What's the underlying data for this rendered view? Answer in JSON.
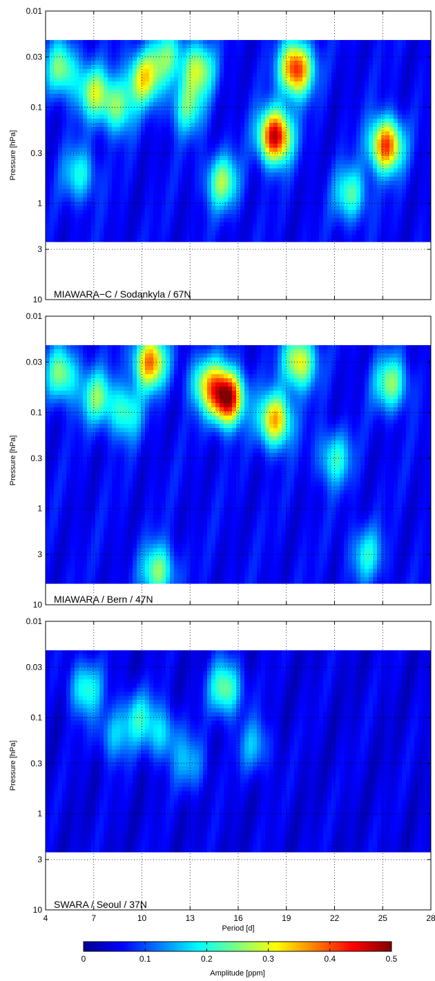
{
  "chart_data": [
    {
      "type": "heatmap",
      "annotation": "MIAWARA−C / Sodankyla / 67N",
      "ylabel": "Pressure [hPa]",
      "xlabel": "",
      "xlim": [
        4,
        28
      ],
      "ylim": [
        10,
        0.01
      ],
      "yscale": "log",
      "data_pressure_range": [
        0.02,
        2.5
      ],
      "x_ticks": [
        4,
        7,
        10,
        13,
        16,
        19,
        22,
        25,
        28
      ],
      "y_ticks": [
        0.01,
        0.03,
        0.1,
        0.3,
        1,
        3,
        10
      ],
      "y_tick_labels": [
        "0.01",
        "0.03",
        "0.1",
        "0.3",
        "1",
        "3",
        "10"
      ],
      "x_tick_labels": [],
      "grid": true,
      "background_amplitude": 0.06,
      "features": [
        {
          "period": 18.3,
          "pressure": 0.2,
          "amplitude": 0.42
        },
        {
          "period": 19.6,
          "pressure": 0.04,
          "amplitude": 0.38
        },
        {
          "period": 25.2,
          "pressure": 0.25,
          "amplitude": 0.36
        },
        {
          "period": 10.1,
          "pressure": 0.05,
          "amplitude": 0.25
        },
        {
          "period": 13.5,
          "pressure": 0.04,
          "amplitude": 0.22
        },
        {
          "period": 11.5,
          "pressure": 0.03,
          "amplitude": 0.16
        },
        {
          "period": 5.0,
          "pressure": 0.04,
          "amplitude": 0.2
        },
        {
          "period": 7.0,
          "pressure": 0.07,
          "amplitude": 0.2
        },
        {
          "period": 8.5,
          "pressure": 0.1,
          "amplitude": 0.18
        },
        {
          "period": 12.8,
          "pressure": 0.1,
          "amplitude": 0.16
        },
        {
          "period": 15.0,
          "pressure": 0.6,
          "amplitude": 0.2
        },
        {
          "period": 6.1,
          "pressure": 0.5,
          "amplitude": 0.14
        },
        {
          "period": 23.0,
          "pressure": 0.8,
          "amplitude": 0.17
        }
      ]
    },
    {
      "type": "heatmap",
      "annotation": "MIAWARA / Bern / 47N",
      "ylabel": "Pressure [hPa]",
      "xlabel": "",
      "xlim": [
        4,
        28
      ],
      "ylim": [
        10,
        0.01
      ],
      "yscale": "log",
      "data_pressure_range": [
        0.02,
        6.0
      ],
      "x_ticks": [
        4,
        7,
        10,
        13,
        16,
        19,
        22,
        25,
        28
      ],
      "y_ticks": [
        0.01,
        0.03,
        0.1,
        0.3,
        1,
        3,
        10
      ],
      "y_tick_labels": [
        "0.01",
        "0.03",
        "0.1",
        "0.3",
        "1",
        "3",
        "10"
      ],
      "x_tick_labels": [],
      "grid": true,
      "background_amplitude": 0.06,
      "features": [
        {
          "period": 15.3,
          "pressure": 0.07,
          "amplitude": 0.45
        },
        {
          "period": 10.5,
          "pressure": 0.03,
          "amplitude": 0.32
        },
        {
          "period": 18.3,
          "pressure": 0.12,
          "amplitude": 0.3
        },
        {
          "period": 19.8,
          "pressure": 0.03,
          "amplitude": 0.26
        },
        {
          "period": 14.0,
          "pressure": 0.05,
          "amplitude": 0.2
        },
        {
          "period": 25.5,
          "pressure": 0.05,
          "amplitude": 0.2
        },
        {
          "period": 5.0,
          "pressure": 0.04,
          "amplitude": 0.2
        },
        {
          "period": 7.2,
          "pressure": 0.07,
          "amplitude": 0.18
        },
        {
          "period": 9.0,
          "pressure": 0.1,
          "amplitude": 0.16
        },
        {
          "period": 11.0,
          "pressure": 4.5,
          "amplitude": 0.2
        },
        {
          "period": 22.0,
          "pressure": 0.3,
          "amplitude": 0.15
        },
        {
          "period": 24.0,
          "pressure": 3.0,
          "amplitude": 0.13
        }
      ]
    },
    {
      "type": "heatmap",
      "annotation": "SWARA / Seoul / 37N",
      "ylabel": "Pressure [hPa]",
      "xlabel": "Period [d]",
      "xlim": [
        4,
        28
      ],
      "ylim": [
        10,
        0.01
      ],
      "yscale": "log",
      "data_pressure_range": [
        0.02,
        2.5
      ],
      "x_ticks": [
        4,
        7,
        10,
        13,
        16,
        19,
        22,
        25,
        28
      ],
      "y_ticks": [
        0.01,
        0.03,
        0.1,
        0.3,
        1,
        3,
        10
      ],
      "y_tick_labels": [
        "0.01",
        "0.03",
        "0.1",
        "0.3",
        "1",
        "3",
        "10"
      ],
      "x_tick_labels": [
        "4",
        "7",
        "10",
        "13",
        "16",
        "19",
        "22",
        "25",
        "28"
      ],
      "grid": true,
      "background_amplitude": 0.05,
      "features": [
        {
          "period": 15.2,
          "pressure": 0.05,
          "amplitude": 0.2
        },
        {
          "period": 6.5,
          "pressure": 0.05,
          "amplitude": 0.16
        },
        {
          "period": 9.8,
          "pressure": 0.1,
          "amplitude": 0.13
        },
        {
          "period": 11.3,
          "pressure": 0.15,
          "amplitude": 0.12
        },
        {
          "period": 8.3,
          "pressure": 0.15,
          "amplitude": 0.11
        },
        {
          "period": 13.0,
          "pressure": 0.3,
          "amplitude": 0.1
        },
        {
          "period": 17.0,
          "pressure": 0.2,
          "amplitude": 0.1
        }
      ]
    }
  ],
  "colorbar": {
    "label": "Amplitude [ppm]",
    "range": [
      0,
      0.5
    ],
    "ticks": [
      0,
      0.1,
      0.2,
      0.3,
      0.4,
      0.5
    ],
    "tick_labels": [
      "0",
      "0.1",
      "0.2",
      "0.3",
      "0.4",
      "0.5"
    ],
    "colormap": "jet"
  }
}
